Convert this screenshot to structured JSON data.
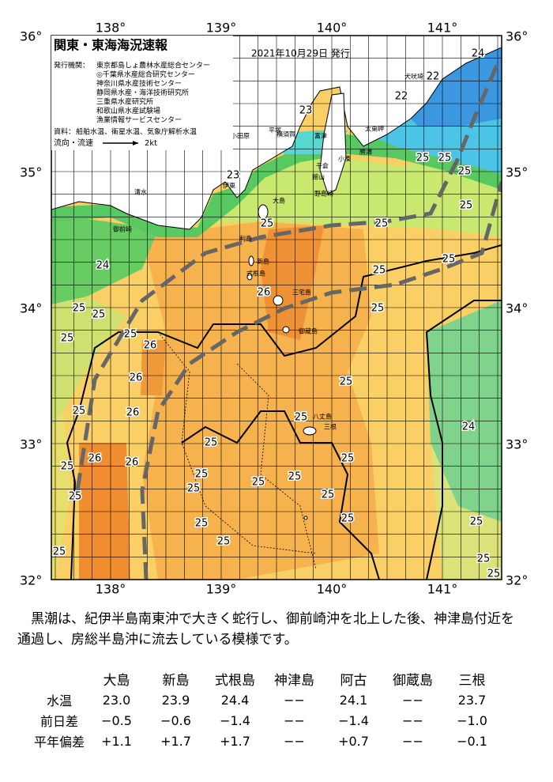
{
  "map": {
    "title": "関東・東海海況速報",
    "date": "2021年10月29日 発行",
    "agency_label": "発行機関：",
    "agencies": [
      "東京都島しょ農林水産総合センター",
      "◎千葉県水産総合研究センター",
      "神奈川県水産技術センター",
      "静岡県水産・海洋技術研究所",
      "三重県水産研究所",
      "和歌山県水産試験場",
      "漁業情報サービスセンター"
    ],
    "source_label": "資料：",
    "sources": "船舶水温、衛星水温、気象庁解析水温",
    "flow_label": "流向・流速",
    "flow_scale": "2kt",
    "lat_labels": [
      "36°",
      "35°",
      "34°",
      "33°",
      "32°"
    ],
    "lon_labels": [
      "138°",
      "139°",
      "140°",
      "141°"
    ],
    "place_labels": [
      "犬吠埼",
      "太東岬",
      "勝浦",
      "小湊",
      "千倉",
      "館山",
      "野島崎",
      "富津",
      "横須賀",
      "平塚",
      "小田原",
      "伊東",
      "清水",
      "御前崎",
      "大島",
      "利島",
      "新島",
      "式根島",
      "三宅島",
      "御蔵島",
      "八丈島",
      "三根"
    ],
    "temp_labels": [
      "24",
      "22",
      "22",
      "23",
      "25",
      "25",
      "25",
      "25",
      "23",
      "25",
      "25",
      "25",
      "25",
      "24",
      "26",
      "25",
      "25",
      "25",
      "25",
      "25",
      "26",
      "26",
      "25",
      "25",
      "26",
      "25",
      "24",
      "25",
      "26",
      "26",
      "25",
      "25",
      "25",
      "25",
      "25",
      "25",
      "25",
      "25",
      "25",
      "25",
      "25",
      "25",
      "25",
      "25",
      "25"
    ]
  },
  "summary": {
    "text": "黒潮は、紀伊半島南東沖で大きく蛇行し、御前崎沖を北上した後、神津島付近を通過し、房総半島沖に流去している模様です。"
  },
  "table": {
    "header": [
      "大島",
      "新島",
      "式根島",
      "神津島",
      "阿古",
      "御蔵島",
      "三根"
    ],
    "rows": [
      [
        "水温",
        "23.0",
        "23.9",
        "24.4",
        "−−",
        "24.1",
        "−−",
        "23.7"
      ],
      [
        "前日差",
        "−0.5",
        "−0.6",
        "−1.4",
        "−−",
        "−1.4",
        "−−",
        "−1.0"
      ],
      [
        "平年偏差",
        "+1.1",
        "+1.7",
        "+1.7",
        "−−",
        "+0.7",
        "−−",
        "−0.1"
      ]
    ]
  }
}
